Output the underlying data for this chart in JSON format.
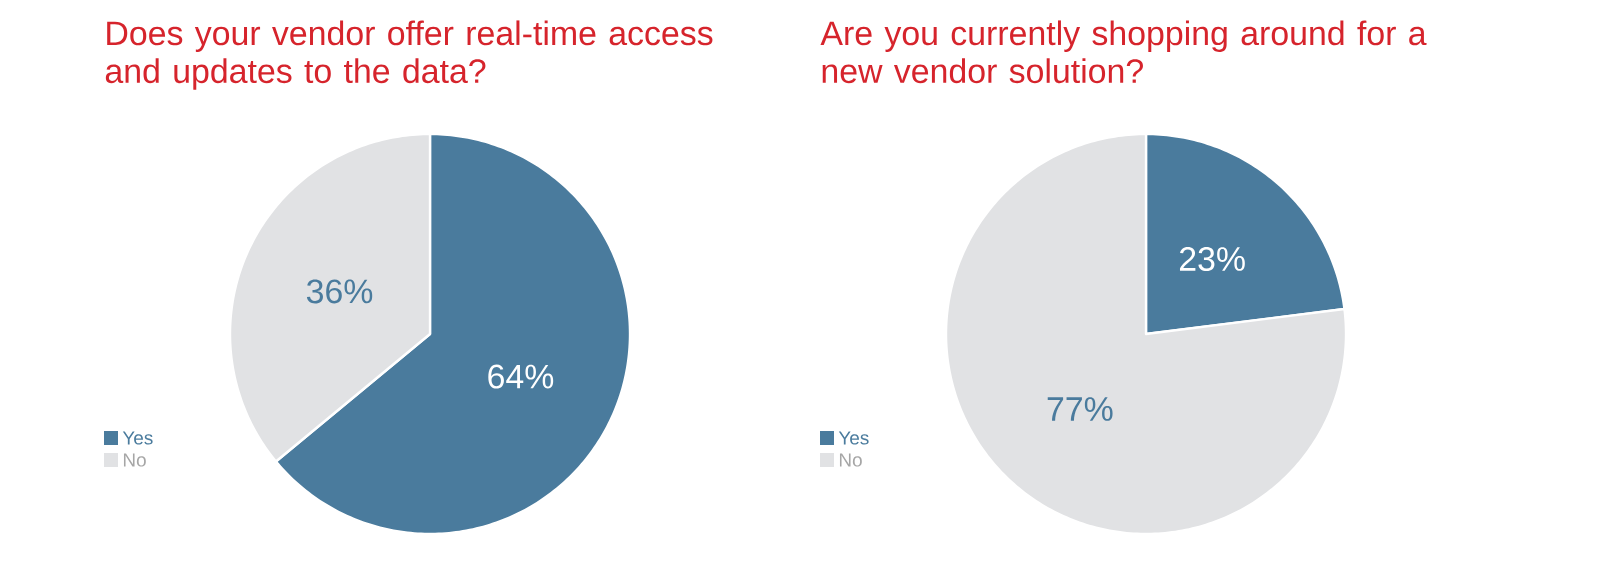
{
  "chart_data": [
    {
      "type": "pie",
      "title": "Does your vendor offer real-time access and updates to the data?",
      "categories": [
        "Yes",
        "No"
      ],
      "values": [
        64,
        36
      ],
      "colors": [
        "#4a7b9d",
        "#e1e2e4"
      ],
      "value_labels": [
        "64%",
        "36%"
      ],
      "legend": "bottom left"
    },
    {
      "type": "pie",
      "title": "Are you currently shopping around for a new vendor solution?",
      "categories": [
        "Yes",
        "No"
      ],
      "values": [
        23,
        77
      ],
      "colors": [
        "#4a7b9d",
        "#e1e2e4"
      ],
      "value_labels": [
        "23%",
        "77%"
      ],
      "legend": "bottom left"
    }
  ]
}
